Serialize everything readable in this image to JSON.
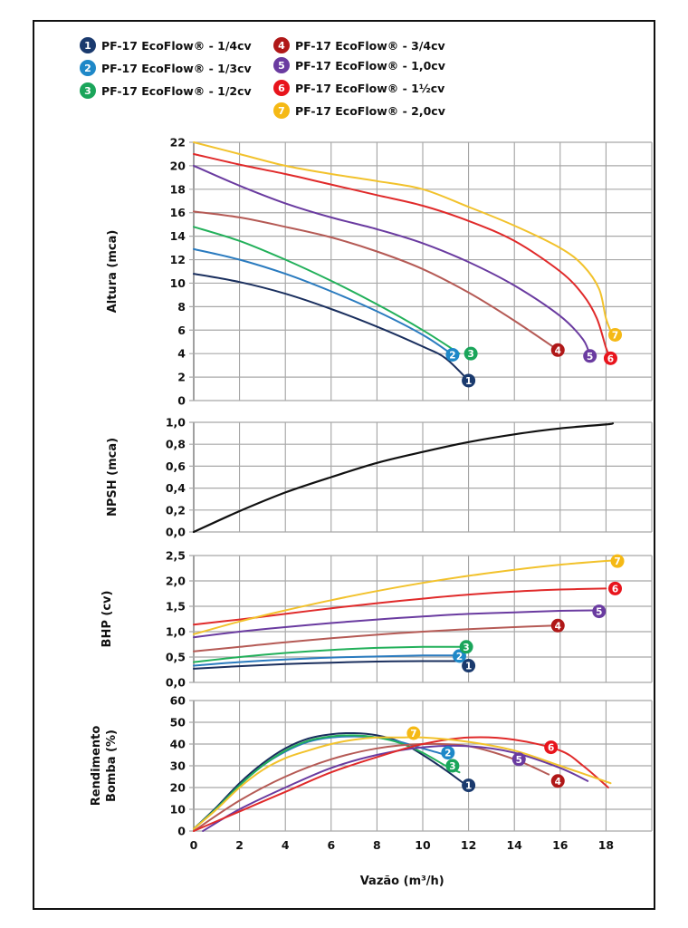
{
  "legend": [
    {
      "id": "1",
      "label": "PF-17 EcoFlow® - 1/4cv",
      "color": "#1a3a6e"
    },
    {
      "id": "2",
      "label": "PF-17 EcoFlow® - 1/3cv",
      "color": "#1e88c8"
    },
    {
      "id": "3",
      "label": "PF-17 EcoFlow® - 1/2cv",
      "color": "#1aa55a"
    },
    {
      "id": "4",
      "label": "PF-17 EcoFlow® - 3/4cv",
      "color": "#b01818"
    },
    {
      "id": "5",
      "label": "PF-17 EcoFlow® - 1,0cv",
      "color": "#6a3ba0"
    },
    {
      "id": "6",
      "label": "PF-17 EcoFlow® - 1½cv",
      "color": "#e8141c"
    },
    {
      "id": "7",
      "label": "PF-17 EcoFlow® - 2,0cv",
      "color": "#f5b915"
    }
  ],
  "line_colors": {
    "1": "#1a2f5e",
    "2": "#2a7bbf",
    "3": "#22b05a",
    "4": "#b55a55",
    "5": "#6a3ba0",
    "6": "#e02a2a",
    "7": "#f2c22c",
    "npsh": "#111111"
  },
  "chart_data": [
    {
      "type": "line",
      "title": "",
      "ylabel": "Altura (mca)",
      "xlabel": "",
      "xlim": [
        0,
        20
      ],
      "ylim": [
        0,
        22
      ],
      "yticks": [
        "0",
        "2",
        "4",
        "6",
        "8",
        "10",
        "12",
        "14",
        "16",
        "18",
        "20",
        "22"
      ],
      "ytick_values": [
        0,
        2,
        4,
        6,
        8,
        10,
        12,
        14,
        16,
        18,
        20,
        22
      ],
      "grid": true,
      "series": [
        {
          "name": "1",
          "x": [
            0,
            2,
            4,
            6,
            8,
            10,
            11,
            12
          ],
          "y": [
            10.8,
            10.1,
            9.1,
            7.8,
            6.3,
            4.6,
            3.6,
            1.7
          ],
          "marker_at": [
            12,
            1.7
          ]
        },
        {
          "name": "2",
          "x": [
            0,
            2,
            4,
            6,
            8,
            10,
            11.3
          ],
          "y": [
            12.9,
            12.0,
            10.8,
            9.3,
            7.6,
            5.6,
            3.9
          ],
          "marker_at": [
            11.3,
            3.9
          ]
        },
        {
          "name": "3",
          "x": [
            0,
            2,
            4,
            6,
            8,
            10,
            11.6
          ],
          "y": [
            14.8,
            13.6,
            12.0,
            10.2,
            8.2,
            6.0,
            4.0
          ],
          "marker_at": [
            12.1,
            4.0
          ]
        },
        {
          "name": "4",
          "x": [
            0,
            2,
            4,
            6,
            8,
            10,
            12,
            14,
            15.9
          ],
          "y": [
            16.1,
            15.6,
            14.8,
            13.9,
            12.7,
            11.2,
            9.2,
            6.8,
            4.3
          ],
          "marker_at": [
            15.9,
            4.3
          ]
        },
        {
          "name": "5",
          "x": [
            0,
            2,
            4,
            6,
            8,
            10,
            12,
            14,
            16,
            17,
            17.3
          ],
          "y": [
            20.0,
            18.3,
            16.8,
            15.6,
            14.6,
            13.4,
            11.8,
            9.8,
            7.2,
            5.2,
            3.8
          ],
          "marker_at": [
            17.3,
            3.8
          ]
        },
        {
          "name": "6",
          "x": [
            0,
            2,
            4,
            6,
            8,
            10,
            12,
            14,
            16,
            17,
            17.6,
            18.0,
            18.2
          ],
          "y": [
            21.0,
            20.1,
            19.3,
            18.4,
            17.5,
            16.6,
            15.3,
            13.6,
            11.0,
            9.0,
            7.0,
            4.5,
            3.6
          ],
          "marker_at": [
            18.2,
            3.6
          ]
        },
        {
          "name": "7",
          "x": [
            0,
            2,
            4,
            6,
            8,
            10,
            12,
            14,
            16,
            17,
            17.7,
            18.0,
            18.3
          ],
          "y": [
            22.0,
            21.0,
            20.0,
            19.3,
            18.7,
            18.0,
            16.5,
            14.9,
            13.0,
            11.5,
            9.5,
            7.0,
            5.5
          ],
          "marker_at": [
            18.4,
            5.6
          ]
        }
      ]
    },
    {
      "type": "line",
      "title": "",
      "ylabel": "NPSH (mca)",
      "xlim": [
        0,
        20
      ],
      "ylim": [
        0,
        1
      ],
      "yticks": [
        "0,0",
        "0,2",
        "0,4",
        "0,6",
        "0,8",
        "1,0"
      ],
      "ytick_values": [
        0,
        0.2,
        0.4,
        0.6,
        0.8,
        1.0
      ],
      "grid": true,
      "series": [
        {
          "name": "npsh",
          "x": [
            0,
            2,
            4,
            6,
            8,
            10,
            12,
            14,
            16,
            18,
            18.3
          ],
          "y": [
            0,
            0.19,
            0.36,
            0.5,
            0.63,
            0.73,
            0.82,
            0.89,
            0.945,
            0.98,
            0.99
          ]
        }
      ]
    },
    {
      "type": "line",
      "title": "",
      "ylabel": "BHP (cv)",
      "xlim": [
        0,
        20
      ],
      "ylim": [
        0,
        2.5
      ],
      "yticks": [
        "0,0",
        "0,5",
        "1,0",
        "1,5",
        "2,0",
        "2,5"
      ],
      "ytick_values": [
        0,
        0.5,
        1.0,
        1.5,
        2.0,
        2.5
      ],
      "grid": true,
      "series": [
        {
          "name": "1",
          "x": [
            0,
            2,
            4,
            6,
            8,
            10,
            11.7
          ],
          "y": [
            0.27,
            0.32,
            0.36,
            0.39,
            0.41,
            0.42,
            0.42
          ],
          "marker_at": [
            12.0,
            0.33
          ]
        },
        {
          "name": "2",
          "x": [
            0,
            2,
            4,
            6,
            8,
            10,
            11.4
          ],
          "y": [
            0.33,
            0.4,
            0.45,
            0.49,
            0.51,
            0.53,
            0.53
          ],
          "marker_at": [
            11.6,
            0.52
          ]
        },
        {
          "name": "3",
          "x": [
            0,
            2,
            4,
            6,
            8,
            10,
            11.8
          ],
          "y": [
            0.4,
            0.5,
            0.58,
            0.64,
            0.68,
            0.7,
            0.7
          ],
          "marker_at": [
            11.9,
            0.7
          ]
        },
        {
          "name": "4",
          "x": [
            0,
            2,
            4,
            6,
            8,
            10,
            12,
            14,
            15.8
          ],
          "y": [
            0.61,
            0.7,
            0.79,
            0.87,
            0.94,
            1.0,
            1.05,
            1.09,
            1.12
          ],
          "marker_at": [
            15.9,
            1.12
          ]
        },
        {
          "name": "5",
          "x": [
            0,
            2,
            4,
            6,
            8,
            10,
            12,
            14,
            16,
            17.5
          ],
          "y": [
            0.89,
            1.0,
            1.09,
            1.17,
            1.24,
            1.3,
            1.35,
            1.38,
            1.41,
            1.42
          ],
          "marker_at": [
            17.7,
            1.4
          ]
        },
        {
          "name": "6",
          "x": [
            0,
            2,
            4,
            6,
            8,
            10,
            12,
            14,
            16,
            18
          ],
          "y": [
            1.14,
            1.24,
            1.35,
            1.46,
            1.56,
            1.65,
            1.73,
            1.79,
            1.83,
            1.85
          ],
          "marker_at": [
            18.4,
            1.85
          ]
        },
        {
          "name": "7",
          "x": [
            0,
            2,
            4,
            6,
            8,
            10,
            12,
            14,
            16,
            18.2
          ],
          "y": [
            0.95,
            1.2,
            1.42,
            1.62,
            1.8,
            1.96,
            2.1,
            2.22,
            2.32,
            2.4
          ],
          "marker_at": [
            18.5,
            2.39
          ]
        }
      ]
    },
    {
      "type": "line",
      "title": "",
      "ylabel": "Rendimento Bomba (%)",
      "xlabel": "Vazão (m³/h)",
      "xlim": [
        0,
        20
      ],
      "ylim": [
        0,
        60
      ],
      "xticks": [
        "0",
        "2",
        "4",
        "6",
        "8",
        "10",
        "12",
        "14",
        "16",
        "18"
      ],
      "xtick_values": [
        0,
        2,
        4,
        6,
        8,
        10,
        12,
        14,
        16,
        18
      ],
      "yticks": [
        "0",
        "10",
        "20",
        "30",
        "40",
        "50",
        "60"
      ],
      "ytick_values": [
        0,
        10,
        20,
        30,
        40,
        50,
        60
      ],
      "grid": true,
      "series": [
        {
          "name": "1",
          "x": [
            0,
            1,
            2,
            3,
            4,
            5,
            6,
            7,
            8,
            9,
            10,
            11,
            11.9
          ],
          "y": [
            1,
            11,
            22,
            31,
            38,
            42.5,
            44.5,
            45,
            44,
            41,
            35,
            28,
            21
          ],
          "marker_at": [
            12.0,
            21
          ]
        },
        {
          "name": "2",
          "x": [
            0,
            1,
            2,
            3,
            4,
            5,
            6,
            7,
            8,
            9,
            10,
            11,
            11.2
          ],
          "y": [
            1,
            10.5,
            21,
            30,
            36.5,
            41,
            43,
            43.5,
            43,
            41,
            38,
            35,
            34
          ],
          "marker_at": [
            11.1,
            36
          ]
        },
        {
          "name": "3",
          "x": [
            0,
            1,
            2,
            3,
            4,
            5,
            6,
            7,
            8,
            9,
            10,
            11,
            11.6
          ],
          "y": [
            1,
            10.5,
            21,
            30,
            37,
            41.5,
            43.5,
            44,
            43,
            40.5,
            36,
            30,
            27
          ],
          "marker_at": [
            11.3,
            30
          ]
        },
        {
          "name": "4",
          "x": [
            0,
            2,
            4,
            6,
            8,
            10,
            12,
            14,
            15.5
          ],
          "y": [
            0,
            14,
            25,
            33,
            38,
            40,
            39,
            33,
            26
          ],
          "marker_at": [
            15.9,
            23
          ]
        },
        {
          "name": "5",
          "x": [
            0.4,
            2,
            4,
            6,
            8,
            10,
            12,
            14,
            16,
            17.2
          ],
          "y": [
            0,
            10,
            20,
            29,
            35,
            38.5,
            39,
            36,
            29,
            23
          ],
          "marker_at": [
            14.2,
            33
          ]
        },
        {
          "name": "6",
          "x": [
            0,
            2,
            4,
            6,
            8,
            10,
            12,
            14,
            16,
            17,
            18.1
          ],
          "y": [
            0,
            9,
            18,
            27,
            34,
            40,
            43,
            42,
            37,
            30,
            20
          ],
          "marker_at": [
            15.6,
            38.5
          ]
        },
        {
          "name": "7",
          "x": [
            0,
            1,
            2,
            3,
            4,
            5,
            6,
            7,
            8,
            9,
            10,
            12,
            14,
            16,
            18.2
          ],
          "y": [
            1,
            10,
            20,
            28,
            33.5,
            37,
            40,
            42,
            43,
            43,
            43,
            41,
            37,
            30,
            22
          ],
          "marker_at": [
            9.6,
            45
          ]
        }
      ]
    }
  ]
}
